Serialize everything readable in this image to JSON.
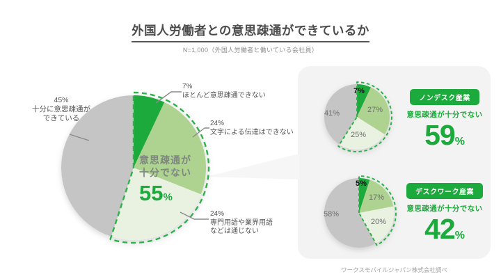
{
  "header": {
    "title": "外国人労働者との意思疎通ができているか",
    "subtitle": "N=1,000（外国人労働者と働いている会社員）"
  },
  "footer": {
    "source": "ワークスモバイルジャパン株式会社調べ"
  },
  "colors": {
    "green": "#1caa3c",
    "green_dash": "#2db14b",
    "green_mid": "#aed391",
    "green_light": "#e9f2e1",
    "gray": "#c5c5c5",
    "card_bg": "#f3f3f3"
  },
  "chart_data": [
    {
      "type": "pie",
      "name": "overall",
      "categories": [
        "ほとんど意思疎通できない",
        "文字による伝達はできない",
        "専門用語や業界用語などは通じない",
        "十分に意思疎通ができている"
      ],
      "values": [
        7,
        24,
        24,
        45
      ],
      "colors": [
        "#1caa3c",
        "#aed391",
        "#e9f2e1",
        "#c5c5c5"
      ],
      "highlight": {
        "label_line1": "意思疎通が",
        "label_line2": "十分でない",
        "value": "55",
        "unit": "%"
      },
      "callouts": [
        {
          "pct": "7%",
          "lines": [
            "ほとんど意思疎通できない"
          ]
        },
        {
          "pct": "24%",
          "lines": [
            "文字による伝達はできない"
          ]
        },
        {
          "pct": "24%",
          "lines": [
            "専門用語や業界用語",
            "などは通じない"
          ]
        },
        {
          "pct": "45%",
          "lines": [
            "十分に意思疎通が",
            "できている"
          ]
        }
      ]
    },
    {
      "type": "pie",
      "name": "nondesk",
      "badge": "ノンデスク産業",
      "caption": "意思疎通が十分でない",
      "highlight": {
        "value": "59",
        "unit": "%"
      },
      "categories": [
        "ほとんど意思疎通できない",
        "文字による伝達はできない",
        "専門用語や業界用語などは通じない",
        "十分に意思疎通ができている"
      ],
      "values": [
        7,
        27,
        25,
        41
      ],
      "slice_labels": [
        "7%",
        "27%",
        "25%",
        "41%"
      ],
      "colors": [
        "#1caa3c",
        "#aed391",
        "#e9f2e1",
        "#c5c5c5"
      ]
    },
    {
      "type": "pie",
      "name": "desk",
      "badge": "デスクワーク産業",
      "caption": "意思疎通が十分でない",
      "highlight": {
        "value": "42",
        "unit": "%"
      },
      "categories": [
        "ほとんど意思疎通できない",
        "文字による伝達はできない",
        "専門用語や業界用語などは通じない",
        "十分に意思疎通ができている"
      ],
      "values": [
        5,
        17,
        20,
        58
      ],
      "slice_labels": [
        "5%",
        "17%",
        "20%",
        "58%"
      ],
      "colors": [
        "#1caa3c",
        "#aed391",
        "#e9f2e1",
        "#c5c5c5"
      ]
    }
  ]
}
